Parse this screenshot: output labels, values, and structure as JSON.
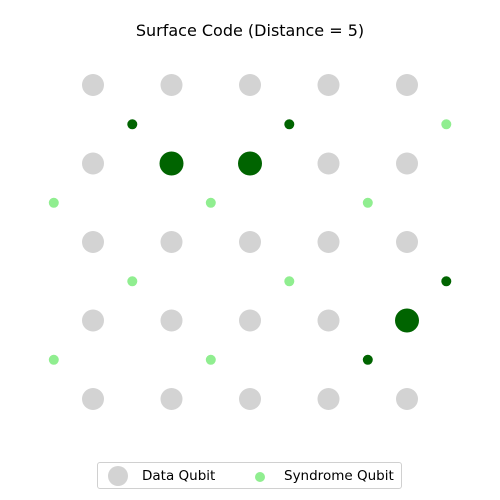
{
  "title": "Surface Code (Distance = 5)",
  "legend": {
    "data_label": "Data Qubit",
    "syndrome_label": "Syndrome Qubit"
  },
  "colors": {
    "data_qubit": "#d3d3d3",
    "syndrome_qubit": "#90ee90",
    "highlight": "#006400"
  },
  "chart_data": {
    "type": "scatter",
    "title": "Surface Code (Distance = 5)",
    "distance": 5,
    "grid_size": 5,
    "data_qubits": [
      {
        "row": 0,
        "col": 0,
        "flagged": false
      },
      {
        "row": 0,
        "col": 1,
        "flagged": false
      },
      {
        "row": 0,
        "col": 2,
        "flagged": false
      },
      {
        "row": 0,
        "col": 3,
        "flagged": false
      },
      {
        "row": 0,
        "col": 4,
        "flagged": false
      },
      {
        "row": 1,
        "col": 0,
        "flagged": false
      },
      {
        "row": 1,
        "col": 1,
        "flagged": true
      },
      {
        "row": 1,
        "col": 2,
        "flagged": true
      },
      {
        "row": 1,
        "col": 3,
        "flagged": false
      },
      {
        "row": 1,
        "col": 4,
        "flagged": false
      },
      {
        "row": 2,
        "col": 0,
        "flagged": false
      },
      {
        "row": 2,
        "col": 1,
        "flagged": false
      },
      {
        "row": 2,
        "col": 2,
        "flagged": false
      },
      {
        "row": 2,
        "col": 3,
        "flagged": false
      },
      {
        "row": 2,
        "col": 4,
        "flagged": false
      },
      {
        "row": 3,
        "col": 0,
        "flagged": false
      },
      {
        "row": 3,
        "col": 1,
        "flagged": false
      },
      {
        "row": 3,
        "col": 2,
        "flagged": false
      },
      {
        "row": 3,
        "col": 3,
        "flagged": false
      },
      {
        "row": 3,
        "col": 4,
        "flagged": true
      },
      {
        "row": 4,
        "col": 0,
        "flagged": false
      },
      {
        "row": 4,
        "col": 1,
        "flagged": false
      },
      {
        "row": 4,
        "col": 2,
        "flagged": false
      },
      {
        "row": 4,
        "col": 3,
        "flagged": false
      },
      {
        "row": 4,
        "col": 4,
        "flagged": false
      }
    ],
    "syndrome_qubits": [
      {
        "row": 0.5,
        "col": 0.5,
        "flagged": true
      },
      {
        "row": 0.5,
        "col": 2.5,
        "flagged": true
      },
      {
        "row": 0.5,
        "col": 4.5,
        "flagged": false
      },
      {
        "row": 1.5,
        "col": -0.5,
        "flagged": false
      },
      {
        "row": 1.5,
        "col": 1.5,
        "flagged": false
      },
      {
        "row": 1.5,
        "col": 3.5,
        "flagged": false
      },
      {
        "row": 2.5,
        "col": 0.5,
        "flagged": false
      },
      {
        "row": 2.5,
        "col": 2.5,
        "flagged": false
      },
      {
        "row": 2.5,
        "col": 4.5,
        "flagged": true
      },
      {
        "row": 3.5,
        "col": -0.5,
        "flagged": false
      },
      {
        "row": 3.5,
        "col": 1.5,
        "flagged": false
      },
      {
        "row": 3.5,
        "col": 3.5,
        "flagged": true
      }
    ],
    "grid": false,
    "legend_position": "bottom-center"
  }
}
